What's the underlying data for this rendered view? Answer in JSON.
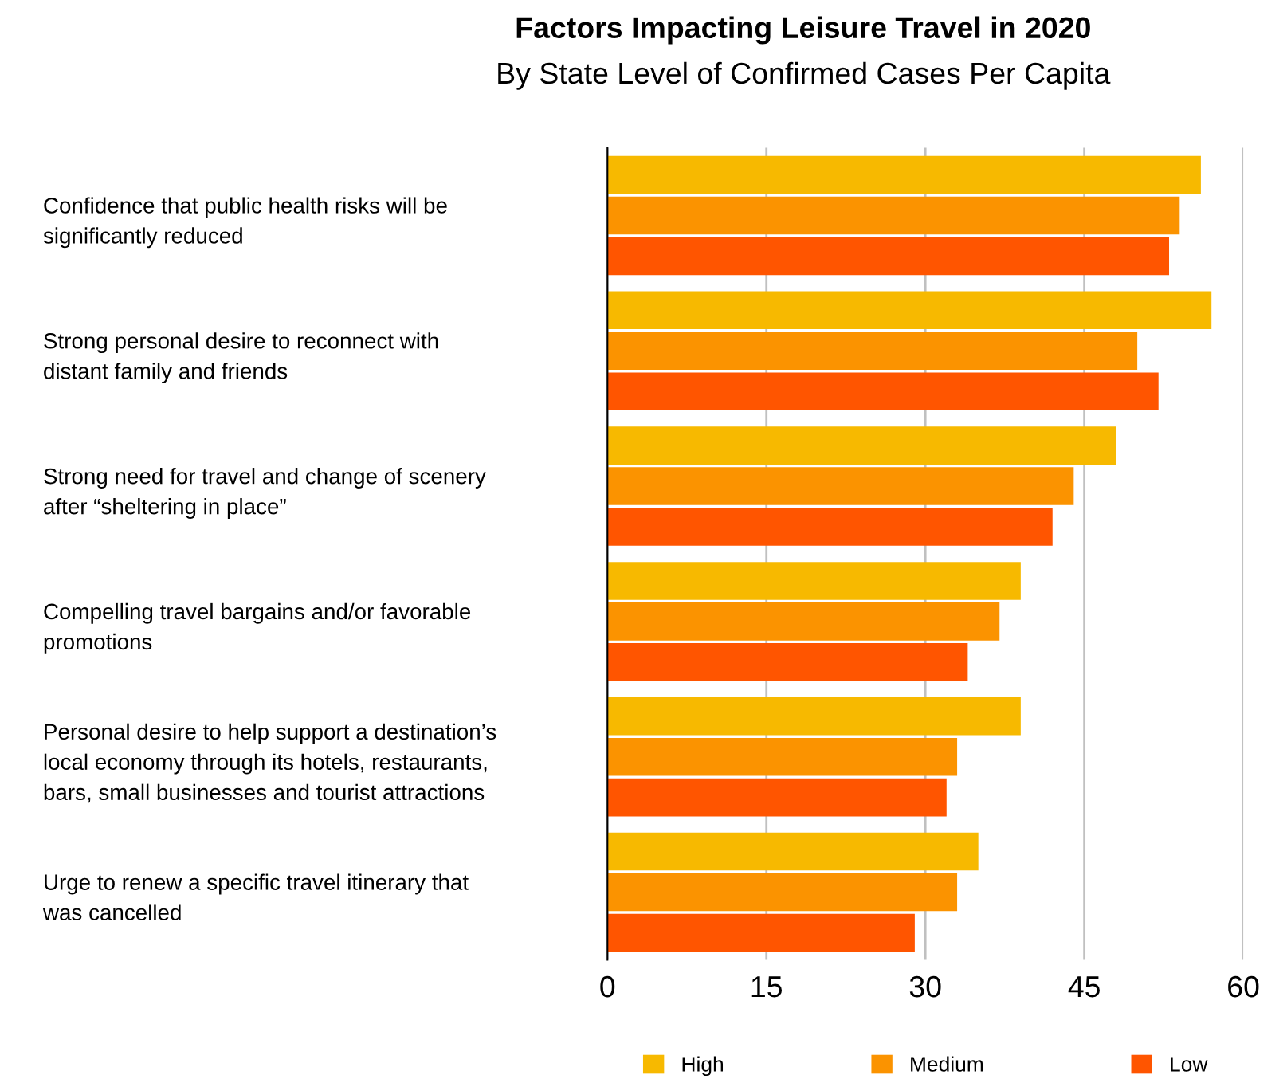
{
  "chart_data": {
    "type": "bar",
    "orientation": "horizontal",
    "title": "Factors Impacting Leisure Travel in 2020",
    "subtitle": "By State Level of Confirmed Cases Per Capita",
    "categories": [
      "Confidence that public health risks will be\nsignificantly reduced",
      "Strong personal desire to reconnect with\ndistant family and friends",
      "Strong need for travel and change of scenery\nafter “sheltering in place”",
      "Compelling travel bargains and/or favorable\npromotions",
      "Personal desire to help support a destination’s\nlocal economy through its hotels, restaurants,\nbars, small businesses and tourist attractions",
      "Urge to renew a specific travel itinerary that\nwas cancelled"
    ],
    "series": [
      {
        "name": "High",
        "color": "#f7b900",
        "values": [
          56,
          57,
          48,
          39,
          39,
          35
        ]
      },
      {
        "name": "Medium",
        "color": "#fb9300",
        "values": [
          54,
          50,
          44,
          37,
          33,
          33
        ]
      },
      {
        "name": "Low",
        "color": "#ff5500",
        "values": [
          53,
          52,
          42,
          34,
          32,
          29
        ]
      }
    ],
    "xlim": [
      0,
      60
    ],
    "xticks": [
      0,
      15,
      30,
      45,
      60
    ],
    "grid": "x",
    "legend": "bottom"
  }
}
